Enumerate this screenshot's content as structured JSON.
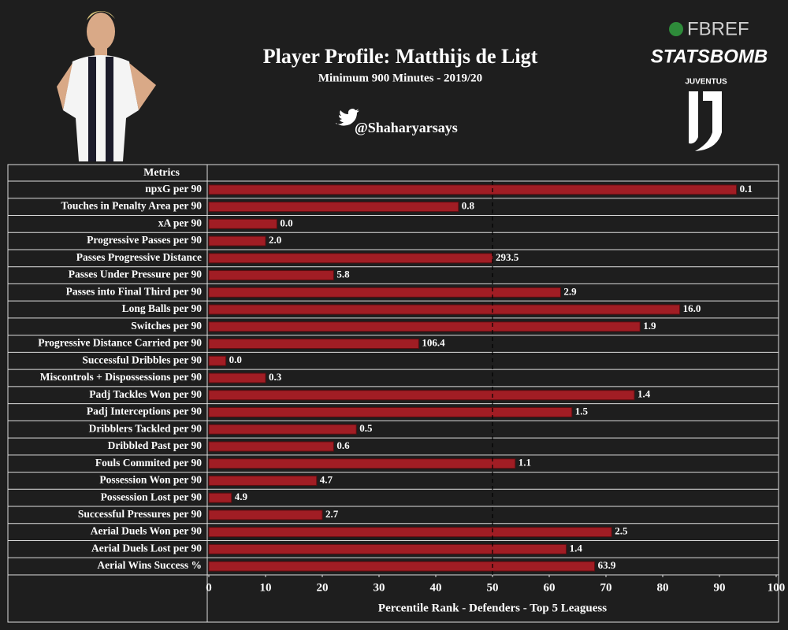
{
  "chart_data": {
    "type": "barh",
    "title": "Player Profile: Matthijs de Ligt",
    "subtitle": "Minimum 900 Minutes - 2019/20",
    "handle": "@Shaharyarsays",
    "logos": {
      "fbref": "FBREF",
      "statsbomb": "STATSBOMB",
      "club": "JUVENTUS"
    },
    "column_header": "Metrics",
    "xlabel": "Percentile Rank - Defenders - Top 5 Leaguess",
    "categories": [
      "npxG per 90",
      "Touches in Penalty Area per 90",
      "xA per 90",
      "Progressive Passes per 90",
      "Passes Progressive Distance",
      "Passes Under Pressure per 90",
      "Passes into Final Third per 90",
      "Long Balls per 90",
      "Switches per 90",
      "Progressive Distance Carried per 90",
      "Successful Dribbles per 90",
      "Miscontrols + Dispossessions per 90",
      "Padj Tackles Won per 90",
      "Padj Interceptions per 90",
      "Dribblers Tackled per 90",
      "Dribbled Past per 90",
      "Fouls Commited per 90",
      "Possession Won per 90",
      "Possession Lost per 90",
      "Successful Pressures per 90",
      "Aerial Duels Won per 90",
      "Aerial Duels Lost per 90",
      "Aerial Wins Success %"
    ],
    "values": [
      93,
      44,
      12,
      10,
      50,
      22,
      62,
      83,
      76,
      37,
      3,
      10,
      75,
      64,
      26,
      22,
      54,
      19,
      4,
      20,
      71,
      63,
      68
    ],
    "raw_stats": [
      "0.1",
      "0.8",
      "0.0",
      "2.0",
      "293.5",
      "5.8",
      "2.9",
      "16.0",
      "1.9",
      "106.4",
      "0.0",
      "0.3",
      "1.4",
      "1.5",
      "0.5",
      "0.6",
      "1.1",
      "4.7",
      "4.9",
      "2.7",
      "2.5",
      "1.4",
      "63.9"
    ],
    "color": "#a11d24",
    "reference_line": 50,
    "xlim": [
      0,
      100
    ],
    "xticks": [
      0,
      10,
      20,
      30,
      40,
      50,
      60,
      70,
      80,
      90,
      100
    ]
  }
}
